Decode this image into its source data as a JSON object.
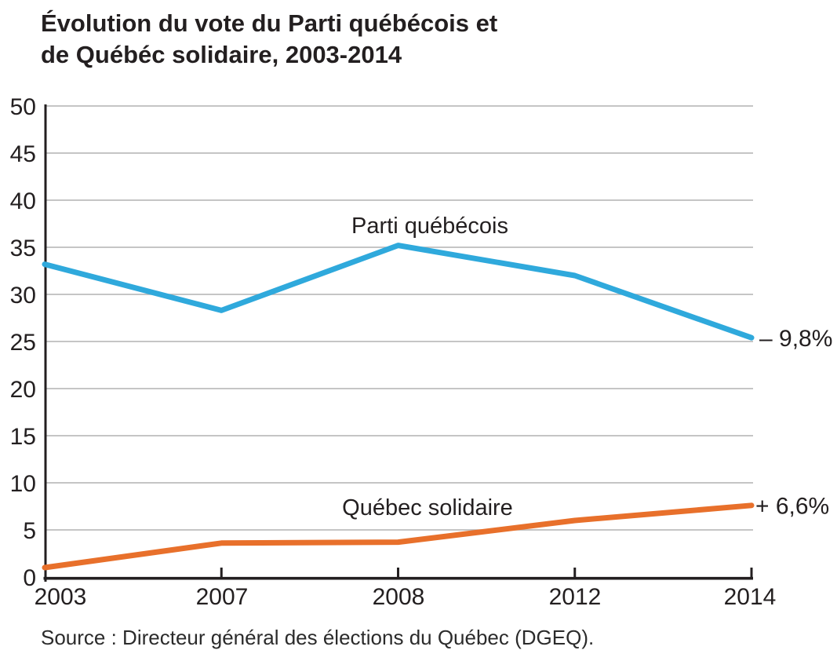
{
  "title": {
    "lines": [
      "Évolution du vote du Parti québécois et",
      "de Québéc solidaire, 2003-2014"
    ]
  },
  "source": {
    "text": "Source : Directeur général des élections du Québec (DGEQ)."
  },
  "chart_data": {
    "type": "line",
    "title": "Évolution du vote du Parti québécois et de Québéc solidaire, 2003-2014",
    "categories": [
      "2003",
      "2007",
      "2008",
      "2012",
      "2014"
    ],
    "series": [
      {
        "name": "Parti québécois",
        "values": [
          33.2,
          28.3,
          35.2,
          32.0,
          25.4
        ],
        "color": "#2FA9DC",
        "end_label": "– 9,8%"
      },
      {
        "name": "Québec solidaire",
        "values": [
          1.0,
          3.6,
          3.7,
          6.0,
          7.6
        ],
        "color": "#E8702B",
        "end_label": "+ 6,6%"
      }
    ],
    "xlabel": "",
    "ylabel": "",
    "ylim": [
      0,
      50
    ],
    "ytick_step": 5,
    "grid": true,
    "legend_position": "inline-labels",
    "axis_color": "#231F20",
    "grid_color": "#B2B2B2",
    "text_color": "#231F20"
  }
}
